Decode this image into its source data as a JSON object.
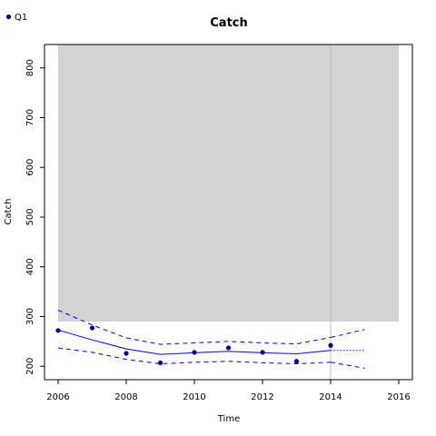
{
  "chart_data": {
    "type": "line",
    "title": "Catch",
    "xlabel": "Time",
    "ylabel": "Catch",
    "xlim": [
      2005.6,
      2016.4
    ],
    "ylim": [
      173,
      847
    ],
    "xticks": [
      2006,
      2008,
      2010,
      2012,
      2014,
      2016
    ],
    "yticks": [
      200,
      300,
      400,
      500,
      600,
      700,
      800
    ],
    "grid": false,
    "legend_position": "top-left",
    "shaded_region": {
      "x": [
        2006,
        2016
      ],
      "y": [
        290,
        847
      ],
      "color": "#d3d3d3"
    },
    "reference_line": {
      "x": 2014,
      "color": "#bdbdbd"
    },
    "series": [
      {
        "name": "Q1",
        "kind": "points",
        "color": "#00008b",
        "x": [
          2006,
          2007,
          2008,
          2009,
          2010,
          2011,
          2012,
          2013,
          2014
        ],
        "y": [
          272,
          277,
          226,
          207,
          228,
          237,
          228,
          210,
          242
        ]
      },
      {
        "kind": "fit",
        "style": "solid",
        "color": "#0000ff",
        "x": [
          2006,
          2007,
          2008,
          2009,
          2010,
          2011,
          2012,
          2013,
          2014
        ],
        "y": [
          273,
          253,
          235,
          224,
          227,
          230,
          227,
          225,
          232
        ]
      },
      {
        "kind": "fit-upper",
        "style": "dashed",
        "color": "#0000ff",
        "x": [
          2006,
          2007,
          2008,
          2009,
          2010,
          2011,
          2012,
          2013,
          2014
        ],
        "y": [
          313,
          283,
          257,
          244,
          247,
          250,
          247,
          245,
          258
        ]
      },
      {
        "kind": "fit-lower",
        "style": "dashed",
        "color": "#0000ff",
        "x": [
          2006,
          2007,
          2008,
          2009,
          2010,
          2011,
          2012,
          2013,
          2014
        ],
        "y": [
          237,
          228,
          214,
          205,
          208,
          210,
          207,
          205,
          208
        ]
      },
      {
        "kind": "forecast",
        "style": "dotted",
        "color": "#0000ff",
        "x": [
          2014,
          2015
        ],
        "y": [
          232,
          232
        ]
      },
      {
        "kind": "forecast-upper",
        "style": "dashed",
        "color": "#0000ff",
        "x": [
          2014,
          2015
        ],
        "y": [
          258,
          274
        ]
      },
      {
        "kind": "forecast-lower",
        "style": "dashed",
        "color": "#0000ff",
        "x": [
          2014,
          2015
        ],
        "y": [
          208,
          196
        ]
      }
    ]
  }
}
